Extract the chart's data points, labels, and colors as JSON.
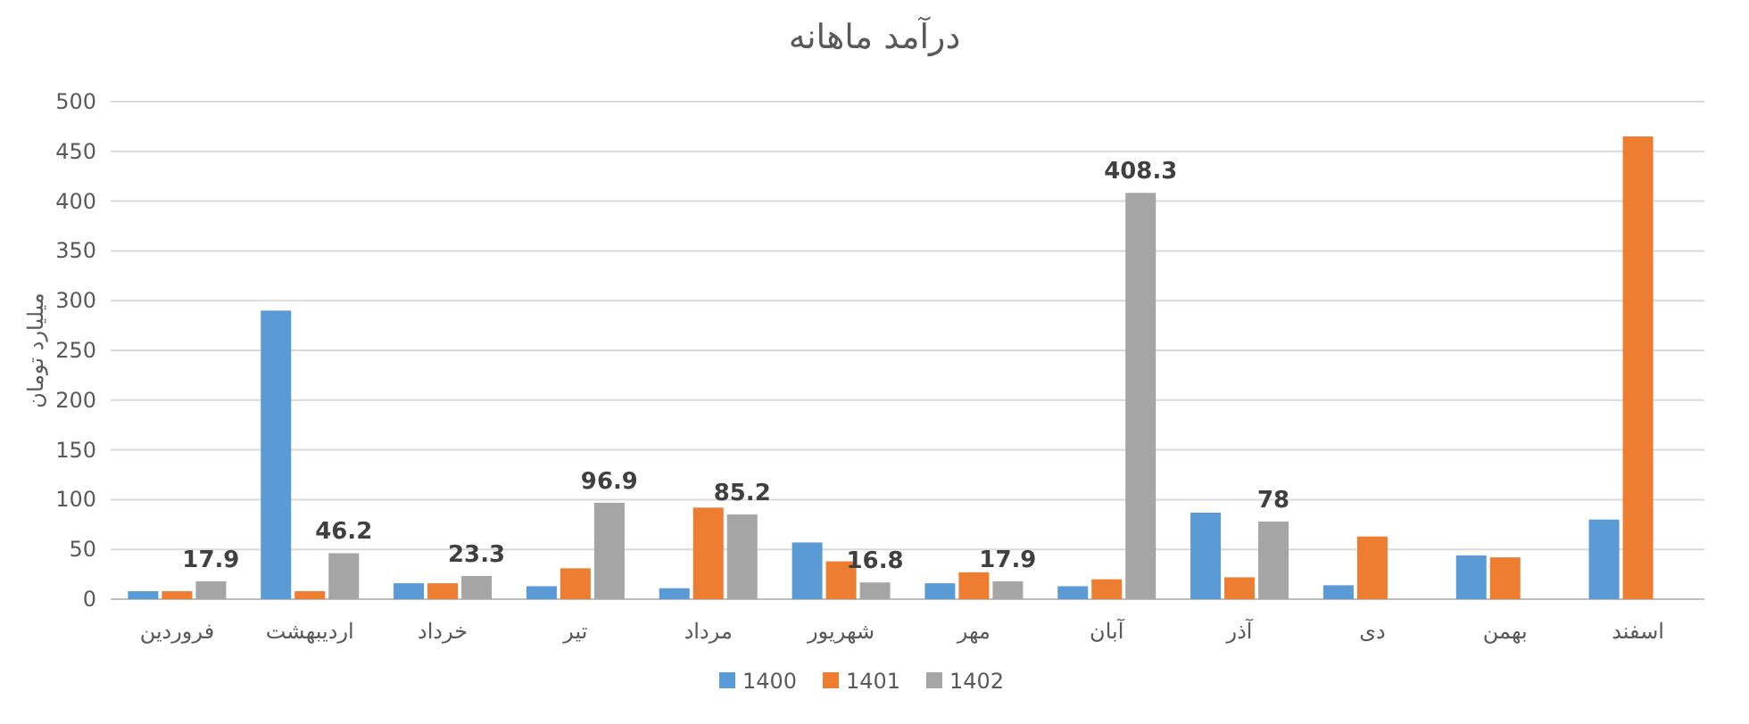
{
  "chart_data": {
    "type": "bar",
    "title": "درآمد ماهانه",
    "ylabel": "میلیارد تومان",
    "categories": [
      "فروردین",
      "اردیبهشت",
      "خرداد",
      "تیر",
      "مرداد",
      "شهریور",
      "مهر",
      "آبان",
      "آذر",
      "دی",
      "بهمن",
      "اسفند"
    ],
    "series": [
      {
        "name": "1400",
        "color": "#5b9bd5",
        "values": [
          8,
          290,
          16,
          13,
          11,
          57,
          16,
          13,
          87,
          14,
          44,
          80
        ]
      },
      {
        "name": "1401",
        "color": "#ed7d31",
        "values": [
          8,
          8,
          16,
          31,
          92,
          38,
          27,
          20,
          22,
          63,
          42,
          465
        ]
      },
      {
        "name": "1402",
        "color": "#a5a5a5",
        "values": [
          17.9,
          46.2,
          23.3,
          96.9,
          85.2,
          16.8,
          17.9,
          408.3,
          78,
          null,
          null,
          null
        ],
        "value_labels": [
          "17.9",
          "46.2",
          "23.3",
          "96.9",
          "85.2",
          "16.8",
          "17.9",
          "408.3",
          "78",
          null,
          null,
          null
        ]
      }
    ],
    "ylim": [
      0,
      500
    ],
    "yticks": [
      0,
      50,
      100,
      150,
      200,
      250,
      300,
      350,
      400,
      450,
      500
    ],
    "grid": "y",
    "legend": "bottom"
  }
}
